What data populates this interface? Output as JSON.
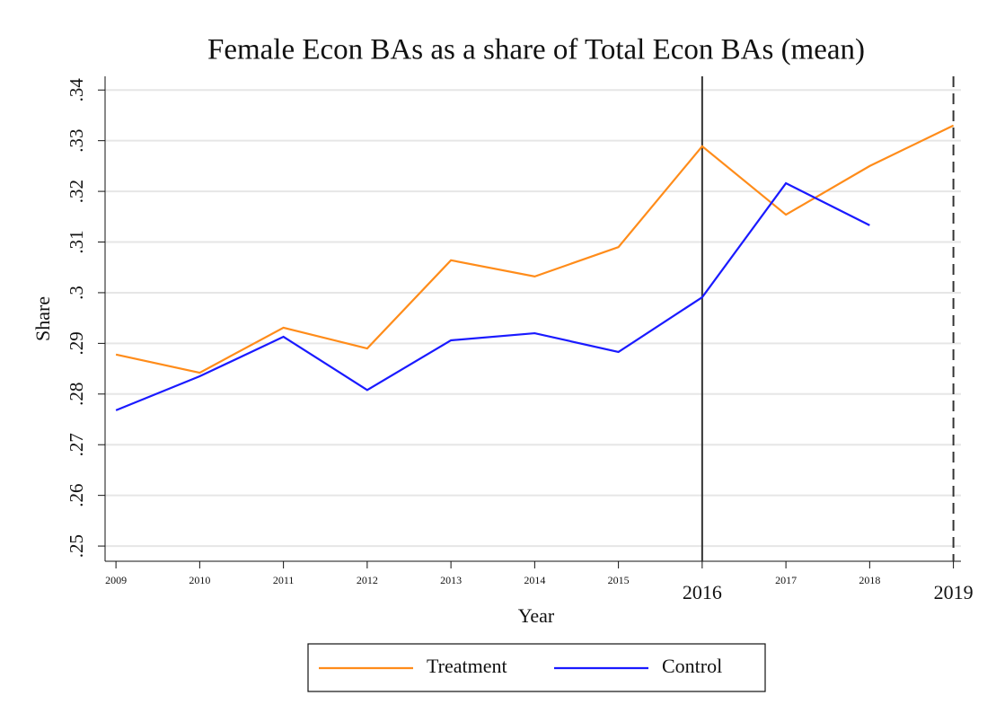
{
  "chart_data": {
    "type": "line",
    "title": "Female Econ BAs as a share of Total Econ BAs (mean)",
    "xlabel": "Year",
    "ylabel": "Share",
    "x": [
      2009,
      2010,
      2011,
      2012,
      2013,
      2014,
      2015,
      2016,
      2017,
      2018,
      2019
    ],
    "series": [
      {
        "name": "Treatment",
        "color": "#ff8c1a",
        "values": [
          0.2878,
          0.2842,
          0.2931,
          0.289,
          0.3064,
          0.3032,
          0.309,
          0.3289,
          0.3154,
          0.325,
          0.333
        ]
      },
      {
        "name": "Control",
        "color": "#1a1aff",
        "values": [
          0.2768,
          0.2835,
          0.2913,
          0.2808,
          0.2906,
          0.292,
          0.2883,
          0.2991,
          0.3216,
          0.3133,
          null
        ]
      }
    ],
    "xlim": [
      2008.87,
      2019.09
    ],
    "xticks": [
      2009,
      2010,
      2011,
      2012,
      2013,
      2014,
      2015,
      2016,
      2017,
      2018,
      2019
    ],
    "ylim": [
      0.247,
      0.3427
    ],
    "yticks": [
      {
        "value": 0.25,
        "label": ".25"
      },
      {
        "value": 0.26,
        "label": ".26"
      },
      {
        "value": 0.27,
        "label": ".27"
      },
      {
        "value": 0.28,
        "label": ".28"
      },
      {
        "value": 0.29,
        "label": ".29"
      },
      {
        "value": 0.3,
        "label": ".3"
      },
      {
        "value": 0.31,
        "label": ".31"
      },
      {
        "value": 0.32,
        "label": ".32"
      },
      {
        "value": 0.33,
        "label": ".33"
      },
      {
        "value": 0.34,
        "label": ".34"
      }
    ],
    "xlines": [
      {
        "value": 2016,
        "style": "solid"
      },
      {
        "value": 2019,
        "style": "dashed"
      }
    ],
    "grid": true,
    "legend": "bottom"
  }
}
